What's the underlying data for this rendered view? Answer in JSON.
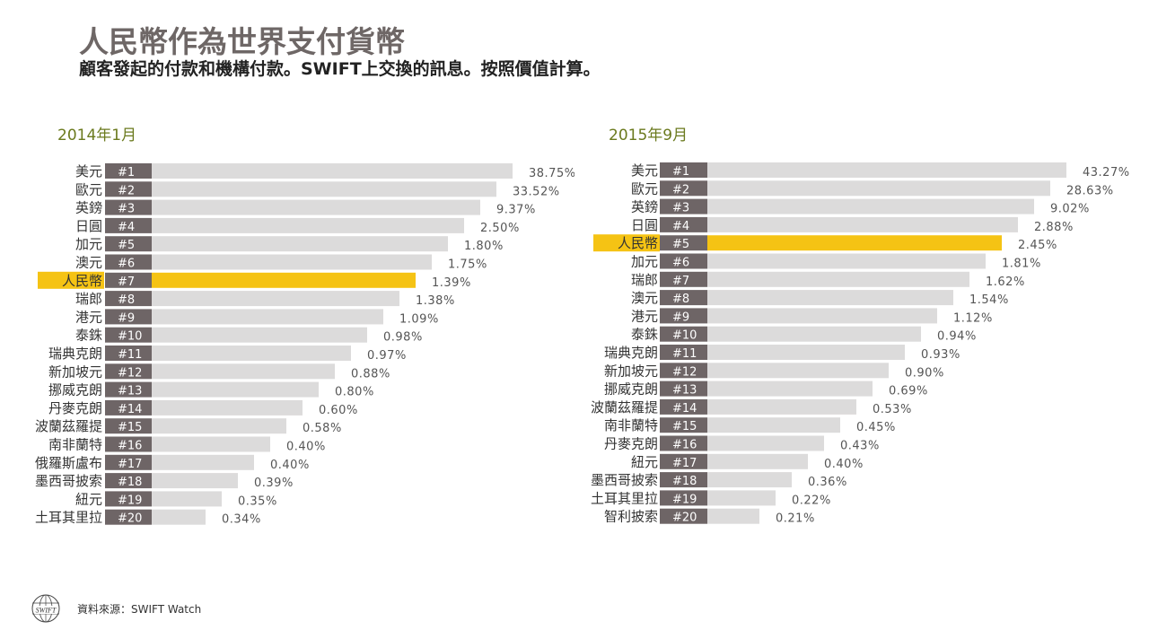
{
  "header": {
    "title": "人民幣作為世界支付貨幣",
    "subtitle": "顧客發起的付款和機構付款。SWIFT上交換的訊息。按照價值計算。"
  },
  "footer": {
    "source": "資料來源：SWIFT Watch",
    "logo_text": "SWIFT"
  },
  "colors": {
    "bar": "#dcdbdb",
    "highlight": "#f5c314",
    "rank_badge": "#6e6566",
    "title": "#6e6766",
    "panel_title": "#6b7a1e",
    "value_text": "#555555"
  },
  "chart_data": [
    {
      "type": "bar",
      "orientation": "horizontal",
      "title": "2014年1月",
      "highlight_rank": "#7",
      "ranks": [
        "#1",
        "#2",
        "#3",
        "#4",
        "#5",
        "#6",
        "#7",
        "#8",
        "#9",
        "#10",
        "#11",
        "#12",
        "#13",
        "#14",
        "#15",
        "#16",
        "#17",
        "#18",
        "#19",
        "#20"
      ],
      "categories": [
        "美元",
        "歐元",
        "英鎊",
        "日圓",
        "加元",
        "澳元",
        "人民幣",
        "瑞郎",
        "港元",
        "泰銖",
        "瑞典克朗",
        "新加坡元",
        "挪威克朗",
        "丹麥克朗",
        "波蘭茲羅提",
        "南非蘭特",
        "俄羅斯盧布",
        "墨西哥披索",
        "紐元",
        "土耳其里拉"
      ],
      "values": [
        38.75,
        33.52,
        9.37,
        2.5,
        1.8,
        1.75,
        1.39,
        1.38,
        1.09,
        0.98,
        0.97,
        0.88,
        0.8,
        0.6,
        0.58,
        0.4,
        0.4,
        0.39,
        0.35,
        0.34
      ],
      "labels": [
        "38.75%",
        "33.52%",
        "9.37%",
        "2.50%",
        "1.80%",
        "1.75%",
        "1.39%",
        "1.38%",
        "1.09%",
        "0.98%",
        "0.97%",
        "0.88%",
        "0.80%",
        "0.60%",
        "0.58%",
        "0.40%",
        "0.40%",
        "0.39%",
        "0.35%",
        "0.34%"
      ]
    },
    {
      "type": "bar",
      "orientation": "horizontal",
      "title": "2015年9月",
      "highlight_rank": "#5",
      "ranks": [
        "#1",
        "#2",
        "#3",
        "#4",
        "#5",
        "#6",
        "#7",
        "#8",
        "#9",
        "#10",
        "#11",
        "#12",
        "#13",
        "#14",
        "#15",
        "#16",
        "#17",
        "#18",
        "#19",
        "#20"
      ],
      "categories": [
        "美元",
        "歐元",
        "英鎊",
        "日圓",
        "人民幣",
        "加元",
        "瑞郎",
        "澳元",
        "港元",
        "泰銖",
        "瑞典克朗",
        "新加坡元",
        "挪威克朗",
        "波蘭茲羅提",
        "南非蘭特",
        "丹麥克朗",
        "紐元",
        "墨西哥披索",
        "土耳其里拉",
        "智利披索"
      ],
      "values": [
        43.27,
        28.63,
        9.02,
        2.88,
        2.45,
        1.81,
        1.62,
        1.54,
        1.12,
        0.94,
        0.93,
        0.9,
        0.69,
        0.53,
        0.45,
        0.43,
        0.4,
        0.36,
        0.22,
        0.21
      ],
      "labels": [
        "43.27%",
        "28.63%",
        "9.02%",
        "2.88%",
        "2.45%",
        "1.81%",
        "1.62%",
        "1.54%",
        "1.12%",
        "0.94%",
        "0.93%",
        "0.90%",
        "0.69%",
        "0.53%",
        "0.45%",
        "0.43%",
        "0.40%",
        "0.36%",
        "0.22%",
        "0.21%"
      ]
    }
  ]
}
